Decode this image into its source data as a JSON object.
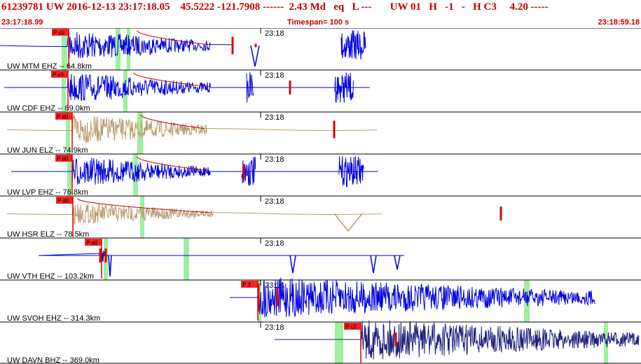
{
  "header": {
    "summary": "61239781 UW 2016-12-13 23:17:18.05    45.5222 -121.7908 ------  2.43 Md   eq   L ---       UW 01   H   -1   -   H C3     4.20 -----",
    "start_time": "23:17:18.99",
    "timespan": "Timespan= 100 s",
    "end_time": "23:18:59.18"
  },
  "minute_label": "23:18",
  "colors": {
    "header": "#c00000",
    "blue": "#0000e0",
    "tan": "#b89d6e",
    "navy": "#202080",
    "pick": "#e00000",
    "green": "#9ef09e",
    "coda": "#c00000"
  },
  "traces": [
    {
      "label": "UW MTM EHZ -- 64.8km",
      "pick": "P c0",
      "color_key": "blue"
    },
    {
      "label": "UW CDF EHZ -- 69.0km",
      "pick": "P c0",
      "color_key": "blue"
    },
    {
      "label": "UW JUN ELZ -- 74.9km",
      "pick": "P d0",
      "color_key": "tan"
    },
    {
      "label": "UW LVP EHZ -- 76.8km",
      "pick": "P d0",
      "color_key": "blue"
    },
    {
      "label": "UW HSR ELZ -- 78.5km",
      "pick": "P d0",
      "color_key": "tan"
    },
    {
      "label": "UW VTH EHZ -- 103.2km",
      "pick": "P d0",
      "color_key": "blue"
    },
    {
      "label": "UW SVOH EHZ -- 314.3km",
      "pick": "P 3",
      "color_key": "blue"
    },
    {
      "label": "UW DAVN BHZ -- 369.0km",
      "pick": "P c2",
      "color_key": "navy"
    }
  ]
}
